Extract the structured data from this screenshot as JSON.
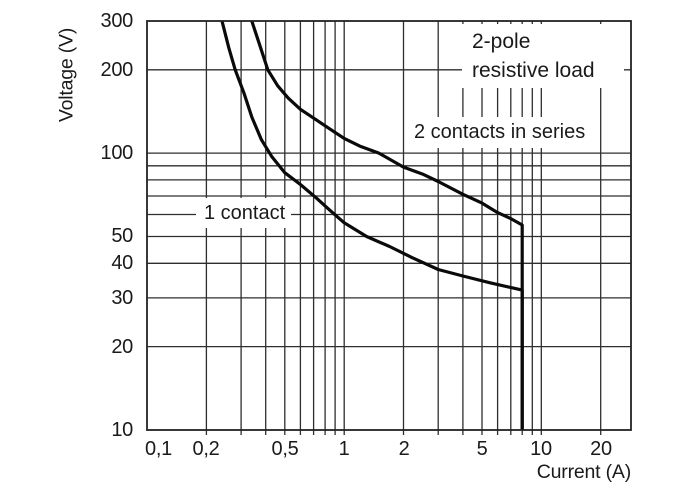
{
  "figure": {
    "background_color": "#ffffff",
    "grid_color": "#2e2e2e",
    "curve_color": "#0a0a0a",
    "text_color": "#1a1a1a"
  },
  "chart_data": {
    "type": "line",
    "title": "",
    "xlabel": "Current (A)",
    "ylabel": "Voltage (V)",
    "x_scale": "log",
    "y_scale": "log",
    "xlim": [
      0.1,
      28.5
    ],
    "ylim": [
      10,
      300
    ],
    "grid": true,
    "legend_position": "inline-annotations",
    "x_tick_labels": [
      {
        "value": 0.1,
        "label": "0,1"
      },
      {
        "value": 0.2,
        "label": "0,2"
      },
      {
        "value": 0.5,
        "label": "0,5"
      },
      {
        "value": 1,
        "label": "1"
      },
      {
        "value": 2,
        "label": "2"
      },
      {
        "value": 5,
        "label": "5"
      },
      {
        "value": 10,
        "label": "10"
      },
      {
        "value": 20,
        "label": "20"
      }
    ],
    "x_gridlines": [
      0.2,
      0.3,
      0.4,
      0.5,
      0.6,
      0.7,
      0.8,
      0.9,
      1,
      2,
      3,
      4,
      5,
      6,
      7,
      8,
      9,
      10,
      20
    ],
    "y_tick_labels": [
      {
        "value": 300,
        "label": "300"
      },
      {
        "value": 200,
        "label": "200"
      },
      {
        "value": 100,
        "label": "100"
      },
      {
        "value": 50,
        "label": "50"
      },
      {
        "value": 40,
        "label": "40"
      },
      {
        "value": 30,
        "label": "30"
      },
      {
        "value": 20,
        "label": "20"
      },
      {
        "value": 10,
        "label": "10"
      }
    ],
    "y_gridlines": [
      20,
      30,
      40,
      50,
      60,
      70,
      80,
      90,
      100,
      200
    ],
    "series": [
      {
        "name": "1 contact",
        "points": [
          [
            0.24,
            300
          ],
          [
            0.26,
            240
          ],
          [
            0.28,
            200
          ],
          [
            0.31,
            165
          ],
          [
            0.34,
            135
          ],
          [
            0.38,
            112
          ],
          [
            0.43,
            97
          ],
          [
            0.5,
            85
          ],
          [
            0.6,
            77
          ],
          [
            0.72,
            69
          ],
          [
            0.85,
            62
          ],
          [
            1.0,
            56
          ],
          [
            1.3,
            50
          ],
          [
            1.7,
            46
          ],
          [
            2.2,
            42
          ],
          [
            3.0,
            38
          ],
          [
            4.0,
            36
          ],
          [
            5.5,
            34
          ],
          [
            8.0,
            32
          ],
          [
            8.0,
            10
          ]
        ]
      },
      {
        "name": "2 contacts in series",
        "points": [
          [
            0.34,
            300
          ],
          [
            0.37,
            250
          ],
          [
            0.41,
            200
          ],
          [
            0.46,
            175
          ],
          [
            0.52,
            158
          ],
          [
            0.6,
            144
          ],
          [
            0.72,
            132
          ],
          [
            0.85,
            122
          ],
          [
            1.0,
            113
          ],
          [
            1.2,
            106
          ],
          [
            1.5,
            100
          ],
          [
            2.0,
            89
          ],
          [
            2.5,
            84
          ],
          [
            3.0,
            79
          ],
          [
            4.0,
            71
          ],
          [
            5.0,
            66
          ],
          [
            6.0,
            61
          ],
          [
            7.0,
            58
          ],
          [
            8.0,
            55
          ],
          [
            8.0,
            10
          ]
        ]
      }
    ],
    "annotations": {
      "load_type_line1": "2-pole",
      "load_type_line2": "resistive load",
      "series2_label": "2 contacts in series",
      "series1_label": "1 contact"
    }
  }
}
